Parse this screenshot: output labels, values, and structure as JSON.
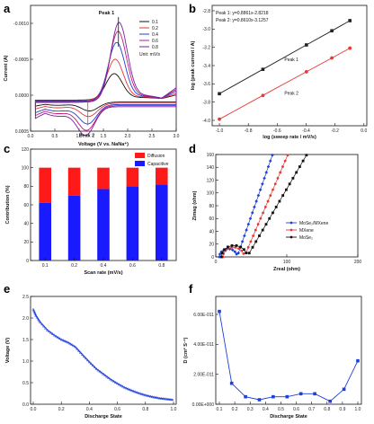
{
  "panels": [
    {
      "id": "a",
      "label": "a",
      "chart_data": {
        "type": "line",
        "xlabel": "Voltage (V vs. NaNa⁺)",
        "ylabel": "Current (A)",
        "xlim": [
          0.0,
          3.0
        ],
        "ylim": [
          -0.00125,
          0.0005
        ],
        "x_ticks": [
          "0.0",
          "0.5",
          "1.0",
          "1.5",
          "2.0",
          "2.5",
          "3.0"
        ],
        "y_ticks": [
          "0.0005",
          "0.0000",
          "-0.0005",
          "-0.0010"
        ],
        "legend": [
          "0.1",
          "0.2",
          "0.4",
          "0.6",
          "0.8"
        ],
        "legend_note": "Unit: mV/s",
        "series_colors": [
          "#111111",
          "#e53935",
          "#1e3fd8",
          "#c2187a",
          "#7a1fa2"
        ],
        "peak_scale": [
          0.35,
          0.5,
          0.7,
          0.85,
          1.0
        ],
        "annotations": [
          "Peak 1",
          "Peak 2"
        ],
        "series": [
          {
            "name": "0.1",
            "anodic_peak": {
              "x": 1.72,
              "y": -0.00035
            },
            "cathodic_peak": {
              "x": 1.22,
              "y": 0.00012
            }
          },
          {
            "name": "0.2",
            "anodic_peak": {
              "x": 1.74,
              "y": -0.00055
            },
            "cathodic_peak": {
              "x": 1.2,
              "y": 0.00018
            }
          },
          {
            "name": "0.4",
            "anodic_peak": {
              "x": 1.77,
              "y": -0.00078
            },
            "cathodic_peak": {
              "x": 1.18,
              "y": 0.00026
            }
          },
          {
            "name": "0.6",
            "anodic_peak": {
              "x": 1.8,
              "y": -0.00093
            },
            "cathodic_peak": {
              "x": 1.16,
              "y": 0.00033
            }
          },
          {
            "name": "0.8",
            "anodic_peak": {
              "x": 1.82,
              "y": -0.00105
            },
            "cathodic_peak": {
              "x": 1.14,
              "y": 0.00038
            }
          }
        ]
      }
    },
    {
      "id": "b",
      "label": "b",
      "chart_data": {
        "type": "line",
        "xlabel": "log (sweep rate / mV/s)",
        "ylabel": "log (peak current / A)",
        "xlim": [
          -1.0,
          0.0
        ],
        "ylim": [
          -4.0,
          -2.8
        ],
        "x_ticks": [
          "-1.0",
          "-0.8",
          "-0.6",
          "-0.4",
          "-0.2",
          "0.0"
        ],
        "y_ticks": [
          "-2.8",
          "-3.0",
          "-3.2",
          "-3.4",
          "-3.6",
          "-3.8",
          "-4.0"
        ],
        "legend_text": [
          "Peak 1: y=0.8861x-2.8218",
          "Peak 2: y=0.8610x-3.1257"
        ],
        "line_labels": [
          "Peak 1",
          "Peak 2"
        ],
        "series": [
          {
            "name": "Peak 1",
            "color": "#222222",
            "x": [
              -1.0,
              -0.699,
              -0.398,
              -0.222,
              -0.097
            ],
            "y": [
              -3.708,
              -3.441,
              -3.174,
              -3.019,
              -2.908
            ]
          },
          {
            "name": "Peak 2",
            "color": "#e53935",
            "x": [
              -1.0,
              -0.699,
              -0.398,
              -0.222,
              -0.097
            ],
            "y": [
              -3.987,
              -3.727,
              -3.468,
              -3.317,
              -3.209
            ]
          }
        ]
      }
    },
    {
      "id": "c",
      "label": "c",
      "chart_data": {
        "type": "bar",
        "xlabel": "Scan rate (mV/s)",
        "ylabel": "Contribution (%)",
        "ylim": [
          0,
          120
        ],
        "y_ticks": [
          "0",
          "20",
          "40",
          "60",
          "80",
          "100",
          "120"
        ],
        "categories": [
          "0.1",
          "0.2",
          "0.4",
          "0.6",
          "0.8"
        ],
        "series": [
          {
            "name": "Capacitive",
            "color": "#1a1aff",
            "values": [
              62,
              70,
              77,
              80,
              82
            ]
          },
          {
            "name": "Diffusion",
            "color": "#ff1a1a",
            "values": [
              38,
              30,
              23,
              20,
              18
            ]
          }
        ]
      }
    },
    {
      "id": "d",
      "label": "d",
      "chart_data": {
        "type": "scatter",
        "xlabel": "Zreal (ohm)",
        "ylabel": "Zimag (ohm)",
        "xlim": [
          0,
          200
        ],
        "ylim": [
          0,
          160
        ],
        "x_ticks": [
          "0",
          "100",
          "200"
        ],
        "y_ticks": [
          "0",
          "20",
          "40",
          "60",
          "80",
          "100",
          "120",
          "140",
          "160"
        ],
        "legend": [
          "MoSe₂/MXene",
          "MXene",
          "MoSe₂"
        ],
        "series": [
          {
            "name": "MoSe₂/MXene",
            "color": "#1e3fd8",
            "marker": "diamond",
            "semicircle": [
              5,
              30
            ],
            "tail_slope": 3.2
          },
          {
            "name": "MXene",
            "color": "#e53935",
            "marker": "circle",
            "semicircle": [
              10,
              40
            ],
            "tail_slope": 2.6
          },
          {
            "name": "MoSe₂",
            "color": "#111111",
            "marker": "square",
            "semicircle": [
              8,
              44
            ],
            "tail_slope": 1.9
          }
        ]
      }
    },
    {
      "id": "e",
      "label": "e",
      "chart_data": {
        "type": "line",
        "xlabel": "Discharge State",
        "ylabel": "Voltage (V)",
        "xlim": [
          0.0,
          1.0
        ],
        "ylim": [
          0.0,
          2.5
        ],
        "x_ticks": [
          "0.0",
          "0.2",
          "0.4",
          "0.6",
          "0.8",
          "1.0"
        ],
        "y_ticks": [
          "0.0",
          "0.5",
          "1.0",
          "1.5",
          "2.0",
          "2.5"
        ],
        "series": [
          {
            "name": "",
            "color": "#1e3fd8",
            "x": [
              0.0,
              0.02,
              0.05,
              0.1,
              0.15,
              0.2,
              0.25,
              0.3,
              0.35,
              0.4,
              0.45,
              0.5,
              0.55,
              0.6,
              0.65,
              0.7,
              0.75,
              0.8,
              0.85,
              0.9,
              0.95,
              1.0
            ],
            "y": [
              2.2,
              2.05,
              1.9,
              1.72,
              1.6,
              1.5,
              1.43,
              1.33,
              1.15,
              0.98,
              0.82,
              0.7,
              0.58,
              0.48,
              0.39,
              0.32,
              0.26,
              0.21,
              0.17,
              0.14,
              0.12,
              0.1
            ]
          }
        ]
      }
    },
    {
      "id": "f",
      "label": "f",
      "chart_data": {
        "type": "line",
        "xlabel": "Discharge State",
        "ylabel": "D (cm² S⁻¹)",
        "xlim": [
          0.1,
          1.0
        ],
        "ylim": [
          0,
          7.2e-11
        ],
        "x_ticks": [
          "0.1",
          "0.2",
          "0.3",
          "0.4",
          "0.5",
          "0.6",
          "0.7",
          "0.8",
          "0.9",
          "1.0"
        ],
        "y_ticks": [
          "0.00E+000",
          "2.00E-011",
          "4.00E-011",
          "6.00E-011"
        ],
        "series": [
          {
            "name": "",
            "color": "#1e3fd8",
            "x": [
              0.1,
              0.18,
              0.27,
              0.36,
              0.45,
              0.54,
              0.63,
              0.72,
              0.82,
              0.91,
              1.0
            ],
            "y": [
              6.2e-11,
              1.4e-11,
              5e-12,
              3e-12,
              5e-12,
              5e-12,
              7e-12,
              7e-12,
              2e-12,
              1e-11,
              2.9e-11
            ]
          }
        ]
      }
    }
  ]
}
